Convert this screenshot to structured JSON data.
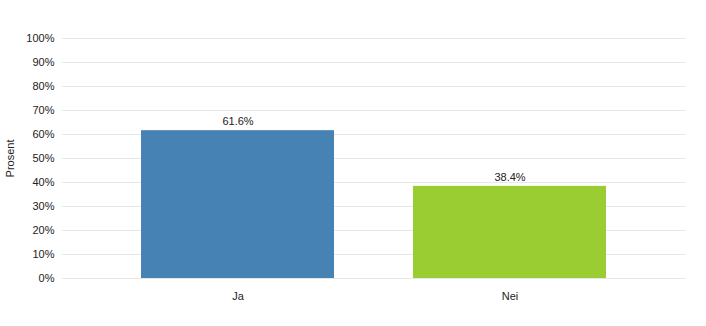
{
  "chart_data": {
    "type": "bar",
    "categories": [
      "Ja",
      "Nei"
    ],
    "values": [
      61.6,
      38.4
    ],
    "value_labels": [
      "61.6%",
      "38.4%"
    ],
    "colors": [
      "#4682b4",
      "#9acd32"
    ],
    "ylabel": "Prosent",
    "ylim": [
      0,
      100
    ],
    "yticks": [
      {
        "value": 0,
        "label": "0%"
      },
      {
        "value": 10,
        "label": "10%"
      },
      {
        "value": 20,
        "label": "20%"
      },
      {
        "value": 30,
        "label": "30%"
      },
      {
        "value": 40,
        "label": "40%"
      },
      {
        "value": 50,
        "label": "50%"
      },
      {
        "value": 60,
        "label": "60%"
      },
      {
        "value": 70,
        "label": "70%"
      },
      {
        "value": 80,
        "label": "80%"
      },
      {
        "value": 90,
        "label": "90%"
      },
      {
        "value": 100,
        "label": "100%"
      }
    ],
    "grid": true,
    "data_labels": true
  }
}
